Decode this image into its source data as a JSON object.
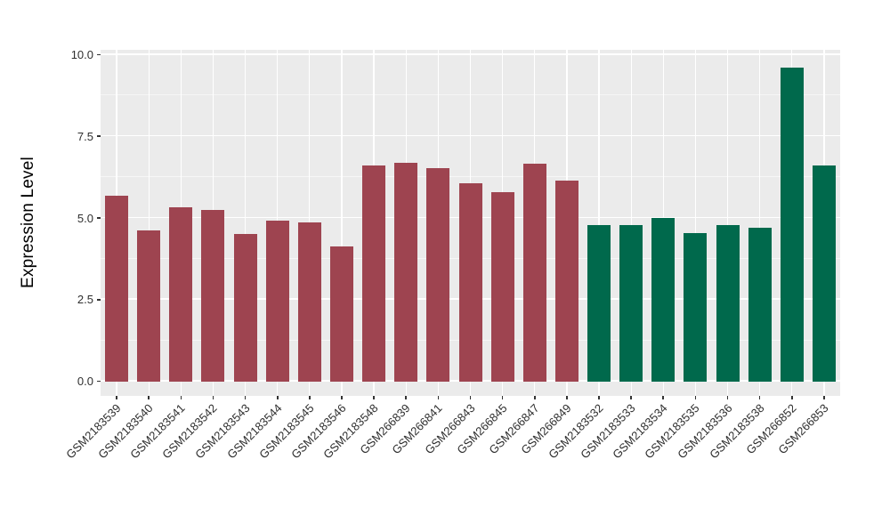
{
  "chart_data": {
    "type": "bar",
    "title": "",
    "xlabel": "",
    "ylabel": "Expression Level",
    "ylim": [
      0,
      10.15
    ],
    "yticks": [
      0.0,
      2.5,
      5.0,
      7.5,
      10.0
    ],
    "ytick_labels": [
      "0.0",
      "2.5",
      "5.0",
      "7.5",
      "10.0"
    ],
    "yticks_minor": [
      1.25,
      3.75,
      6.25,
      8.75
    ],
    "grid": true,
    "legend": false,
    "panel_background": "#EBEBEB",
    "gridline_color": "#FFFFFF",
    "categories": [
      "GSM2183539",
      "GSM2183540",
      "GSM2183541",
      "GSM2183542",
      "GSM2183543",
      "GSM2183544",
      "GSM2183545",
      "GSM2183546",
      "GSM2183548",
      "GSM266839",
      "GSM266841",
      "GSM266843",
      "GSM266845",
      "GSM266847",
      "GSM266849",
      "GSM2183532",
      "GSM2183533",
      "GSM2183534",
      "GSM2183535",
      "GSM2183536",
      "GSM2183538",
      "GSM266852",
      "GSM266853"
    ],
    "values": [
      5.68,
      4.62,
      5.33,
      5.25,
      4.5,
      4.92,
      4.86,
      4.12,
      6.6,
      6.7,
      6.52,
      6.07,
      5.8,
      6.65,
      6.15,
      4.78,
      4.78,
      5.0,
      4.55,
      4.78,
      4.7,
      9.6,
      6.62
    ],
    "group_of_bar": [
      0,
      0,
      0,
      0,
      0,
      0,
      0,
      0,
      0,
      0,
      0,
      0,
      0,
      0,
      0,
      1,
      1,
      1,
      1,
      1,
      1,
      1,
      1
    ],
    "group_colors": [
      "#9E4450",
      "#00694C"
    ]
  }
}
